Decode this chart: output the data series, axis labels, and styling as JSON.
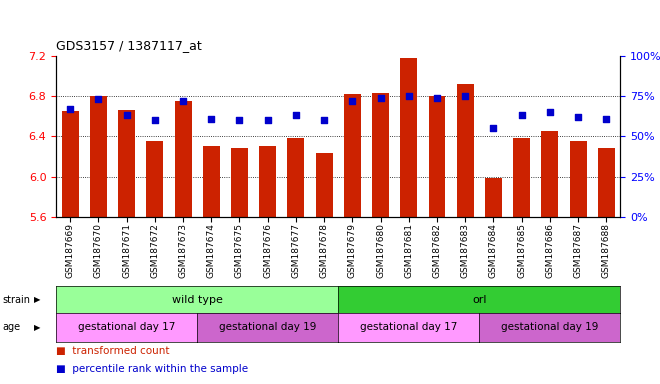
{
  "title": "GDS3157 / 1387117_at",
  "samples": [
    "GSM187669",
    "GSM187670",
    "GSM187671",
    "GSM187672",
    "GSM187673",
    "GSM187674",
    "GSM187675",
    "GSM187676",
    "GSM187677",
    "GSM187678",
    "GSM187679",
    "GSM187680",
    "GSM187681",
    "GSM187682",
    "GSM187683",
    "GSM187684",
    "GSM187685",
    "GSM187686",
    "GSM187687",
    "GSM187688"
  ],
  "bar_values": [
    6.65,
    6.8,
    6.66,
    6.35,
    6.75,
    6.3,
    6.28,
    6.3,
    6.38,
    6.23,
    6.82,
    6.83,
    7.18,
    6.8,
    6.92,
    5.99,
    6.38,
    6.45,
    6.35,
    6.28
  ],
  "dot_values": [
    67,
    73,
    63,
    60,
    72,
    61,
    60,
    60,
    63,
    60,
    72,
    74,
    75,
    74,
    75,
    55,
    63,
    65,
    62,
    61
  ],
  "bar_bottom": 5.6,
  "ylim_left": [
    5.6,
    7.2
  ],
  "ylim_right": [
    0,
    100
  ],
  "yticks_left": [
    5.6,
    6.0,
    6.4,
    6.8,
    7.2
  ],
  "yticks_right": [
    0,
    25,
    50,
    75,
    100
  ],
  "grid_values": [
    6.0,
    6.4,
    6.8
  ],
  "bar_color": "#cc2200",
  "dot_color": "#0000cc",
  "strain_groups": [
    {
      "label": "wild type",
      "start": 0,
      "end": 10,
      "color": "#99ff99"
    },
    {
      "label": "orl",
      "start": 10,
      "end": 20,
      "color": "#33cc33"
    }
  ],
  "age_groups": [
    {
      "label": "gestational day 17",
      "start": 0,
      "end": 5,
      "color": "#ff99ff"
    },
    {
      "label": "gestational day 19",
      "start": 5,
      "end": 10,
      "color": "#cc66cc"
    },
    {
      "label": "gestational day 17",
      "start": 10,
      "end": 15,
      "color": "#ff99ff"
    },
    {
      "label": "gestational day 19",
      "start": 15,
      "end": 20,
      "color": "#cc66cc"
    }
  ],
  "legend_items": [
    {
      "label": "transformed count",
      "color": "#cc2200"
    },
    {
      "label": "percentile rank within the sample",
      "color": "#0000cc"
    }
  ]
}
